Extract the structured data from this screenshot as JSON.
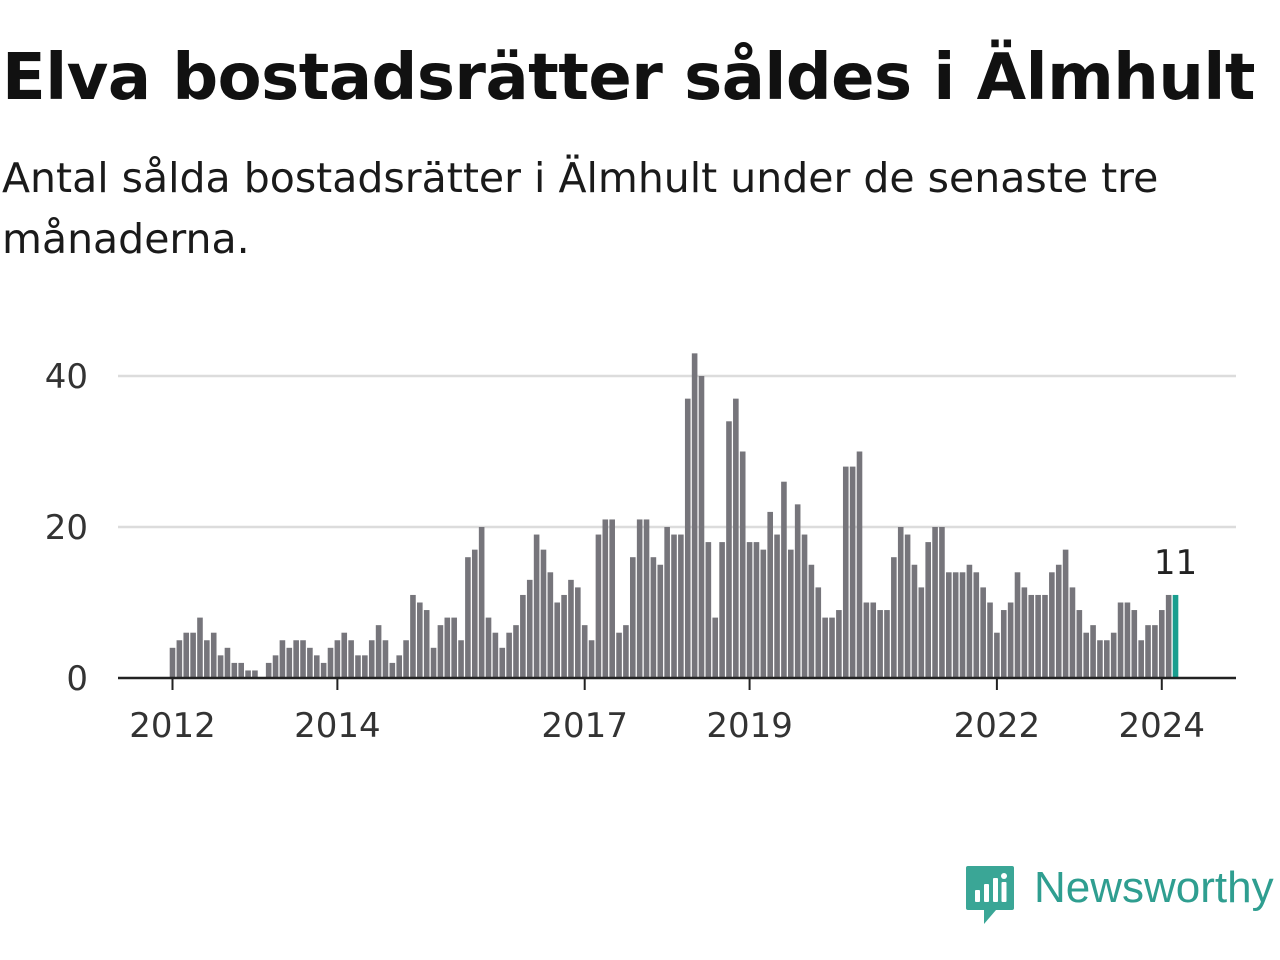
{
  "header": {
    "title": "Elva bostadsrätter såldes i Älmhult",
    "subtitle": "Antal sålda bostadsrätter i Älmhult under de senaste tre månaderna."
  },
  "brand": {
    "name": "Newsworthy",
    "color": "#2f9e90",
    "icon": "newsworthy-logo-icon"
  },
  "chart_data": {
    "type": "bar",
    "title": "",
    "xlabel": "",
    "ylabel": "",
    "x_start": "2012-01",
    "x_tick_labels": [
      "2012",
      "2014",
      "2017",
      "2019",
      "2022",
      "2024"
    ],
    "y_tick_labels": [
      "0",
      "20",
      "40"
    ],
    "ylim": [
      0,
      45
    ],
    "grid": true,
    "bar_color": "#76757b",
    "highlight_color": "#1a9e8f",
    "highlight_last": true,
    "last_value_label": "11",
    "values": [
      4,
      5,
      6,
      6,
      8,
      5,
      6,
      3,
      4,
      2,
      2,
      1,
      1,
      0,
      2,
      3,
      5,
      4,
      5,
      5,
      4,
      3,
      2,
      4,
      5,
      6,
      5,
      3,
      3,
      5,
      7,
      5,
      2,
      3,
      5,
      11,
      10,
      9,
      4,
      7,
      8,
      8,
      5,
      16,
      17,
      20,
      8,
      6,
      4,
      6,
      7,
      11,
      13,
      19,
      17,
      14,
      10,
      11,
      13,
      12,
      7,
      5,
      19,
      21,
      21,
      6,
      7,
      16,
      21,
      21,
      16,
      15,
      20,
      19,
      19,
      37,
      43,
      40,
      18,
      8,
      18,
      34,
      37,
      30,
      18,
      18,
      17,
      22,
      19,
      26,
      17,
      23,
      19,
      15,
      12,
      8,
      8,
      9,
      28,
      28,
      30,
      10,
      10,
      9,
      9,
      16,
      20,
      19,
      15,
      12,
      18,
      20,
      20,
      14,
      14,
      14,
      15,
      14,
      12,
      10,
      6,
      9,
      10,
      14,
      12,
      11,
      11,
      11,
      14,
      15,
      17,
      12,
      9,
      6,
      7,
      5,
      5,
      6,
      10,
      10,
      9,
      5,
      7,
      7,
      9,
      11,
      11
    ]
  }
}
